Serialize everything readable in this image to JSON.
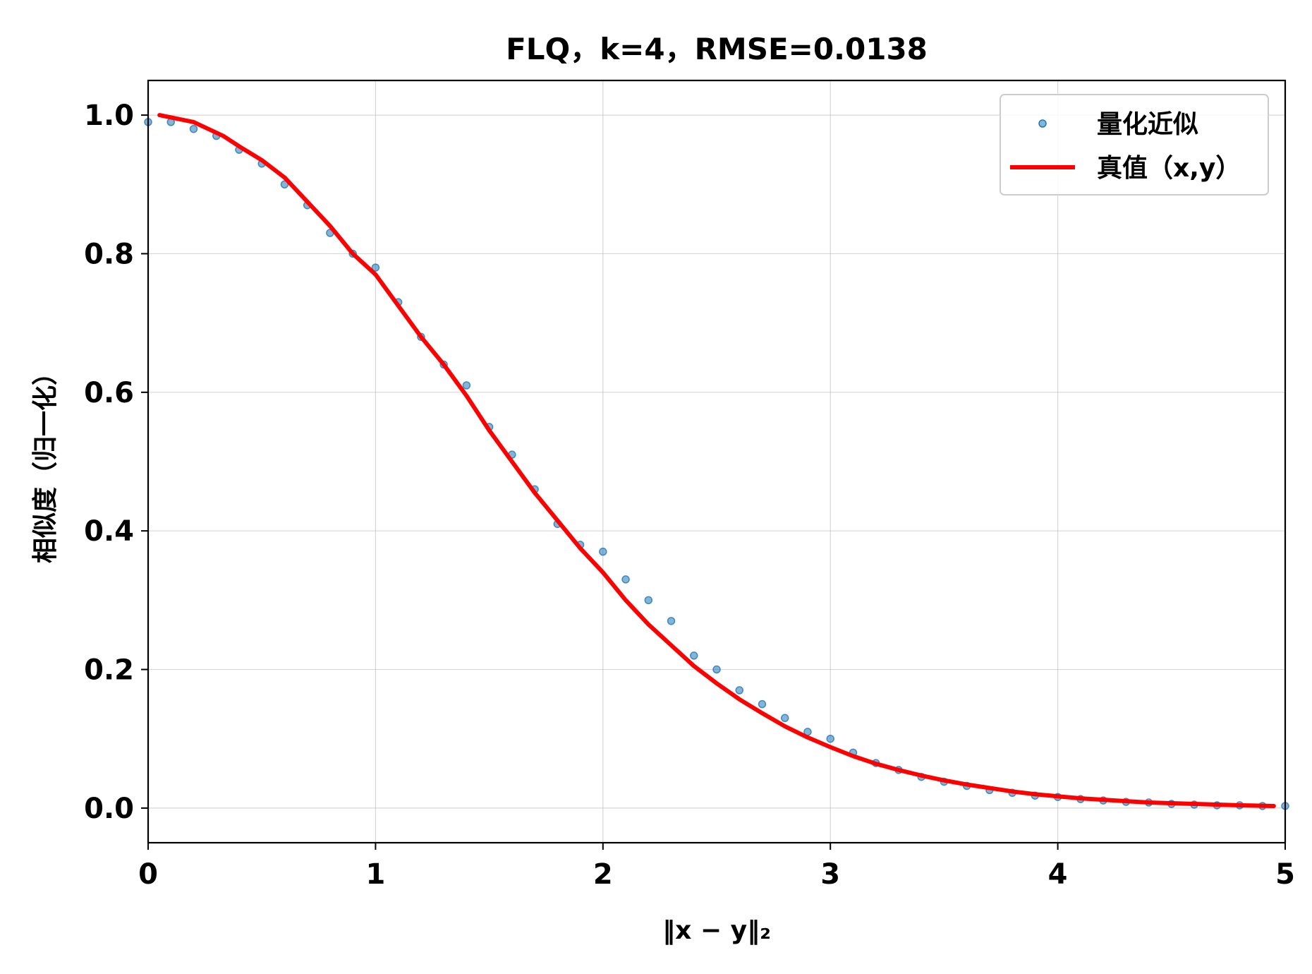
{
  "chart_data": {
    "type": "scatter",
    "title": "FLQ，k=4，RMSE=0.0138",
    "xlabel": "‖x − y‖₂",
    "ylabel": "相似度（归一化）",
    "xlim": [
      0,
      5
    ],
    "ylim": [
      -0.05,
      1.05
    ],
    "xticks": [
      0,
      1,
      2,
      3,
      4,
      5
    ],
    "xtick_labels": [
      "0",
      "1",
      "2",
      "3",
      "4",
      "5"
    ],
    "yticks": [
      0.0,
      0.2,
      0.4,
      0.6,
      0.8,
      1.0
    ],
    "ytick_labels": [
      "0.0",
      "0.2",
      "0.4",
      "0.6",
      "0.8",
      "1.0"
    ],
    "grid": true,
    "legend_position": "top-right",
    "series": [
      {
        "name": "量化近似",
        "kind": "scatter",
        "color": "#1f77b4",
        "x": [
          0.0,
          0.1,
          0.2,
          0.3,
          0.4,
          0.5,
          0.6,
          0.7,
          0.8,
          0.9,
          1.0,
          1.1,
          1.2,
          1.3,
          1.4,
          1.5,
          1.6,
          1.7,
          1.8,
          1.9,
          2.0,
          2.1,
          2.2,
          2.3,
          2.4,
          2.5,
          2.6,
          2.7,
          2.8,
          2.9,
          3.0,
          3.1,
          3.2,
          3.3,
          3.4,
          3.5,
          3.6,
          3.7,
          3.8,
          3.9,
          4.0,
          4.1,
          4.2,
          4.3,
          4.4,
          4.5,
          4.6,
          4.7,
          4.8,
          4.9,
          5.0
        ],
        "y": [
          0.99,
          0.99,
          0.98,
          0.97,
          0.95,
          0.93,
          0.9,
          0.87,
          0.83,
          0.8,
          0.78,
          0.73,
          0.68,
          0.64,
          0.61,
          0.55,
          0.51,
          0.46,
          0.41,
          0.38,
          0.37,
          0.33,
          0.3,
          0.27,
          0.22,
          0.2,
          0.17,
          0.15,
          0.13,
          0.11,
          0.1,
          0.08,
          0.065,
          0.055,
          0.045,
          0.038,
          0.032,
          0.026,
          0.022,
          0.018,
          0.016,
          0.013,
          0.011,
          0.009,
          0.008,
          0.006,
          0.005,
          0.004,
          0.004,
          0.003,
          0.003
        ]
      },
      {
        "name": "真值（x,y）",
        "kind": "line",
        "color": "#ff0000",
        "x": [
          0.05,
          0.2,
          0.33,
          0.4,
          0.5,
          0.6,
          0.7,
          0.8,
          0.9,
          1.0,
          1.1,
          1.2,
          1.3,
          1.4,
          1.5,
          1.6,
          1.7,
          1.8,
          1.9,
          2.0,
          2.1,
          2.2,
          2.3,
          2.4,
          2.5,
          2.6,
          2.7,
          2.8,
          2.9,
          3.0,
          3.1,
          3.2,
          3.3,
          3.4,
          3.5,
          3.6,
          3.7,
          3.8,
          3.9,
          4.0,
          4.1,
          4.2,
          4.3,
          4.4,
          4.5,
          4.6,
          4.7,
          4.8,
          4.95
        ],
        "y": [
          1.0,
          0.99,
          0.97,
          0.955,
          0.935,
          0.91,
          0.875,
          0.84,
          0.8,
          0.77,
          0.725,
          0.68,
          0.64,
          0.595,
          0.545,
          0.5,
          0.455,
          0.415,
          0.375,
          0.34,
          0.3,
          0.265,
          0.235,
          0.205,
          0.18,
          0.157,
          0.137,
          0.118,
          0.102,
          0.088,
          0.075,
          0.064,
          0.055,
          0.047,
          0.04,
          0.034,
          0.029,
          0.024,
          0.02,
          0.017,
          0.014,
          0.012,
          0.01,
          0.008,
          0.007,
          0.006,
          0.005,
          0.004,
          0.003
        ]
      }
    ]
  }
}
